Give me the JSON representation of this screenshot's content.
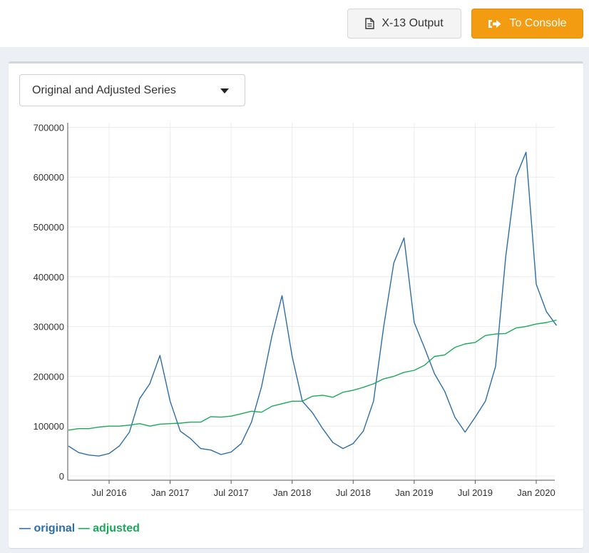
{
  "toolbar": {
    "x13_label": "X-13 Output",
    "console_label": "To Console"
  },
  "series_selector": {
    "selected": "Original and Adjusted Series"
  },
  "colors": {
    "accent": "#f39c12",
    "original": "#2c6ea6",
    "adjusted": "#1ca85a"
  },
  "legend": {
    "original": "original",
    "adjusted": "adjusted"
  },
  "chart_data": {
    "type": "line",
    "ylim": [
      0,
      700000
    ],
    "y_ticks": [
      0,
      100000,
      200000,
      300000,
      400000,
      500000,
      600000,
      700000
    ],
    "y_tick_labels": [
      "0",
      "100000",
      "200000",
      "300000",
      "400000",
      "500000",
      "600000",
      "700000"
    ],
    "x_range": [
      "2016-03",
      "2020-03"
    ],
    "x_ticks": [
      "2016-07",
      "2017-01",
      "2017-07",
      "2018-01",
      "2018-07",
      "2019-01",
      "2019-07",
      "2020-01"
    ],
    "x_tick_labels": [
      "Jul 2016",
      "Jan 2017",
      "Jul 2017",
      "Jan 2018",
      "Jul 2018",
      "Jan 2019",
      "Jul 2019",
      "Jan 2020"
    ],
    "x": [
      "2016-03",
      "2016-04",
      "2016-05",
      "2016-06",
      "2016-07",
      "2016-08",
      "2016-09",
      "2016-10",
      "2016-11",
      "2016-12",
      "2017-01",
      "2017-02",
      "2017-03",
      "2017-04",
      "2017-05",
      "2017-06",
      "2017-07",
      "2017-08",
      "2017-09",
      "2017-10",
      "2017-11",
      "2017-12",
      "2018-01",
      "2018-02",
      "2018-03",
      "2018-04",
      "2018-05",
      "2018-06",
      "2018-07",
      "2018-08",
      "2018-09",
      "2018-10",
      "2018-11",
      "2018-12",
      "2019-01",
      "2019-02",
      "2019-03",
      "2019-04",
      "2019-05",
      "2019-06",
      "2019-07",
      "2019-08",
      "2019-09",
      "2019-10",
      "2019-11",
      "2019-12",
      "2020-01",
      "2020-02",
      "2020-03"
    ],
    "series": [
      {
        "name": "original",
        "values": [
          60000,
          47000,
          42000,
          40000,
          45000,
          60000,
          88000,
          155000,
          185000,
          242000,
          150000,
          90000,
          75000,
          55000,
          52000,
          43000,
          48000,
          65000,
          108000,
          180000,
          280000,
          362000,
          240000,
          150000,
          127000,
          95000,
          67000,
          55000,
          65000,
          90000,
          150000,
          300000,
          428000,
          478000,
          308000,
          258000,
          205000,
          170000,
          118000,
          88000,
          118000,
          150000,
          220000,
          440000,
          600000,
          650000,
          385000,
          330000,
          302000
        ]
      },
      {
        "name": "adjusted",
        "values": [
          92000,
          95000,
          95000,
          98000,
          100000,
          100000,
          102000,
          105000,
          100000,
          104000,
          105000,
          106000,
          108000,
          108000,
          119000,
          118000,
          120000,
          125000,
          130000,
          128000,
          140000,
          145000,
          150000,
          150000,
          160000,
          162000,
          158000,
          168000,
          172000,
          178000,
          185000,
          195000,
          200000,
          208000,
          212000,
          222000,
          240000,
          243000,
          258000,
          265000,
          268000,
          282000,
          285000,
          286000,
          297000,
          300000,
          305000,
          308000,
          313000
        ]
      }
    ]
  }
}
